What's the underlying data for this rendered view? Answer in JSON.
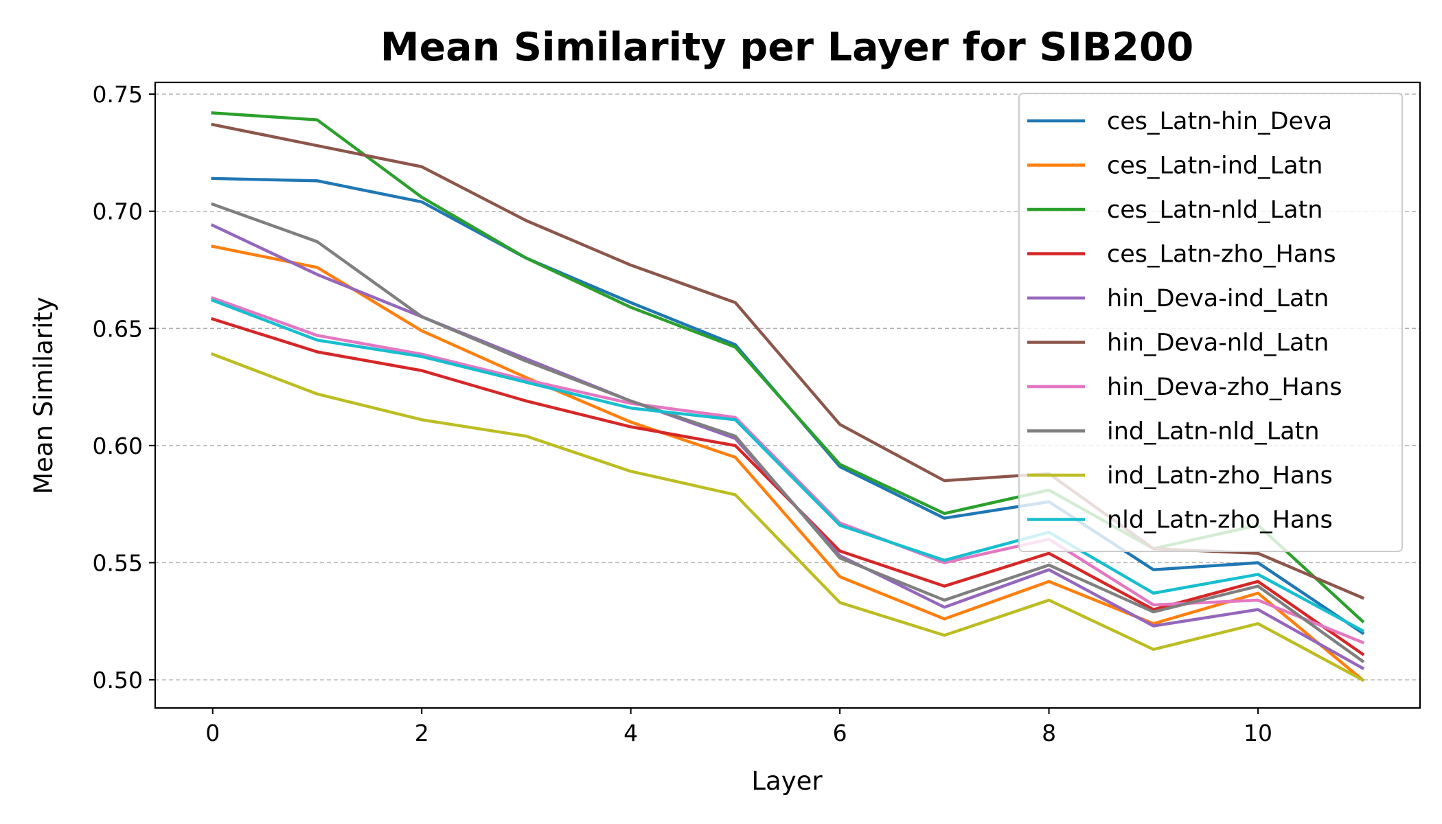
{
  "chart_data": {
    "type": "line",
    "title": "Mean Similarity per Layer for SIB200",
    "xlabel": "Layer",
    "ylabel": "Mean Similarity",
    "xlim": [
      -0.55,
      11.55
    ],
    "ylim": [
      0.488,
      0.755
    ],
    "x": [
      0,
      1,
      2,
      3,
      4,
      5,
      6,
      7,
      8,
      9,
      10,
      11
    ],
    "xticks": [
      0,
      2,
      4,
      6,
      8,
      10
    ],
    "xtick_labels": [
      "0",
      "2",
      "4",
      "6",
      "8",
      "10"
    ],
    "yticks": [
      0.5,
      0.55,
      0.6,
      0.65,
      0.7,
      0.75
    ],
    "ytick_labels": [
      "0.50",
      "0.55",
      "0.60",
      "0.65",
      "0.70",
      "0.75"
    ],
    "grid": "horizontal dashed",
    "legend_position": "top-right",
    "series": [
      {
        "name": "ces_Latn-hin_Deva",
        "color": "#1f77b4",
        "values": [
          0.714,
          0.713,
          0.704,
          0.68,
          0.661,
          0.643,
          0.591,
          0.569,
          0.576,
          0.547,
          0.55,
          0.52
        ]
      },
      {
        "name": "ces_Latn-ind_Latn",
        "color": "#ff7f0e",
        "values": [
          0.685,
          0.676,
          0.649,
          0.629,
          0.61,
          0.595,
          0.544,
          0.526,
          0.542,
          0.524,
          0.537,
          0.5
        ]
      },
      {
        "name": "ces_Latn-nld_Latn",
        "color": "#2ca02c",
        "values": [
          0.742,
          0.739,
          0.706,
          0.68,
          0.659,
          0.642,
          0.592,
          0.571,
          0.581,
          0.556,
          0.566,
          0.525
        ]
      },
      {
        "name": "ces_Latn-zho_Hans",
        "color": "#d62728",
        "values": [
          0.654,
          0.64,
          0.632,
          0.619,
          0.608,
          0.6,
          0.555,
          0.54,
          0.554,
          0.53,
          0.542,
          0.511
        ]
      },
      {
        "name": "hin_Deva-ind_Latn",
        "color": "#9467bd",
        "values": [
          0.694,
          0.673,
          0.655,
          0.637,
          0.619,
          0.603,
          0.553,
          0.531,
          0.547,
          0.523,
          0.53,
          0.505
        ]
      },
      {
        "name": "hin_Deva-nld_Latn",
        "color": "#8c564b",
        "values": [
          0.737,
          0.728,
          0.719,
          0.696,
          0.677,
          0.661,
          0.609,
          0.585,
          0.588,
          0.556,
          0.554,
          0.535
        ]
      },
      {
        "name": "hin_Deva-zho_Hans",
        "color": "#e377c2",
        "values": [
          0.663,
          0.647,
          0.639,
          0.628,
          0.618,
          0.612,
          0.567,
          0.55,
          0.56,
          0.532,
          0.534,
          0.516
        ]
      },
      {
        "name": "ind_Latn-nld_Latn",
        "color": "#7f7f7f",
        "values": [
          0.703,
          0.687,
          0.655,
          0.636,
          0.619,
          0.604,
          0.552,
          0.534,
          0.549,
          0.529,
          0.54,
          0.508
        ]
      },
      {
        "name": "ind_Latn-zho_Hans",
        "color": "#bcbd22",
        "values": [
          0.639,
          0.622,
          0.611,
          0.604,
          0.589,
          0.579,
          0.533,
          0.519,
          0.534,
          0.513,
          0.524,
          0.5
        ]
      },
      {
        "name": "nld_Latn-zho_Hans",
        "color": "#17becf",
        "values": [
          0.662,
          0.645,
          0.638,
          0.627,
          0.616,
          0.611,
          0.566,
          0.551,
          0.563,
          0.537,
          0.545,
          0.521
        ]
      }
    ]
  }
}
